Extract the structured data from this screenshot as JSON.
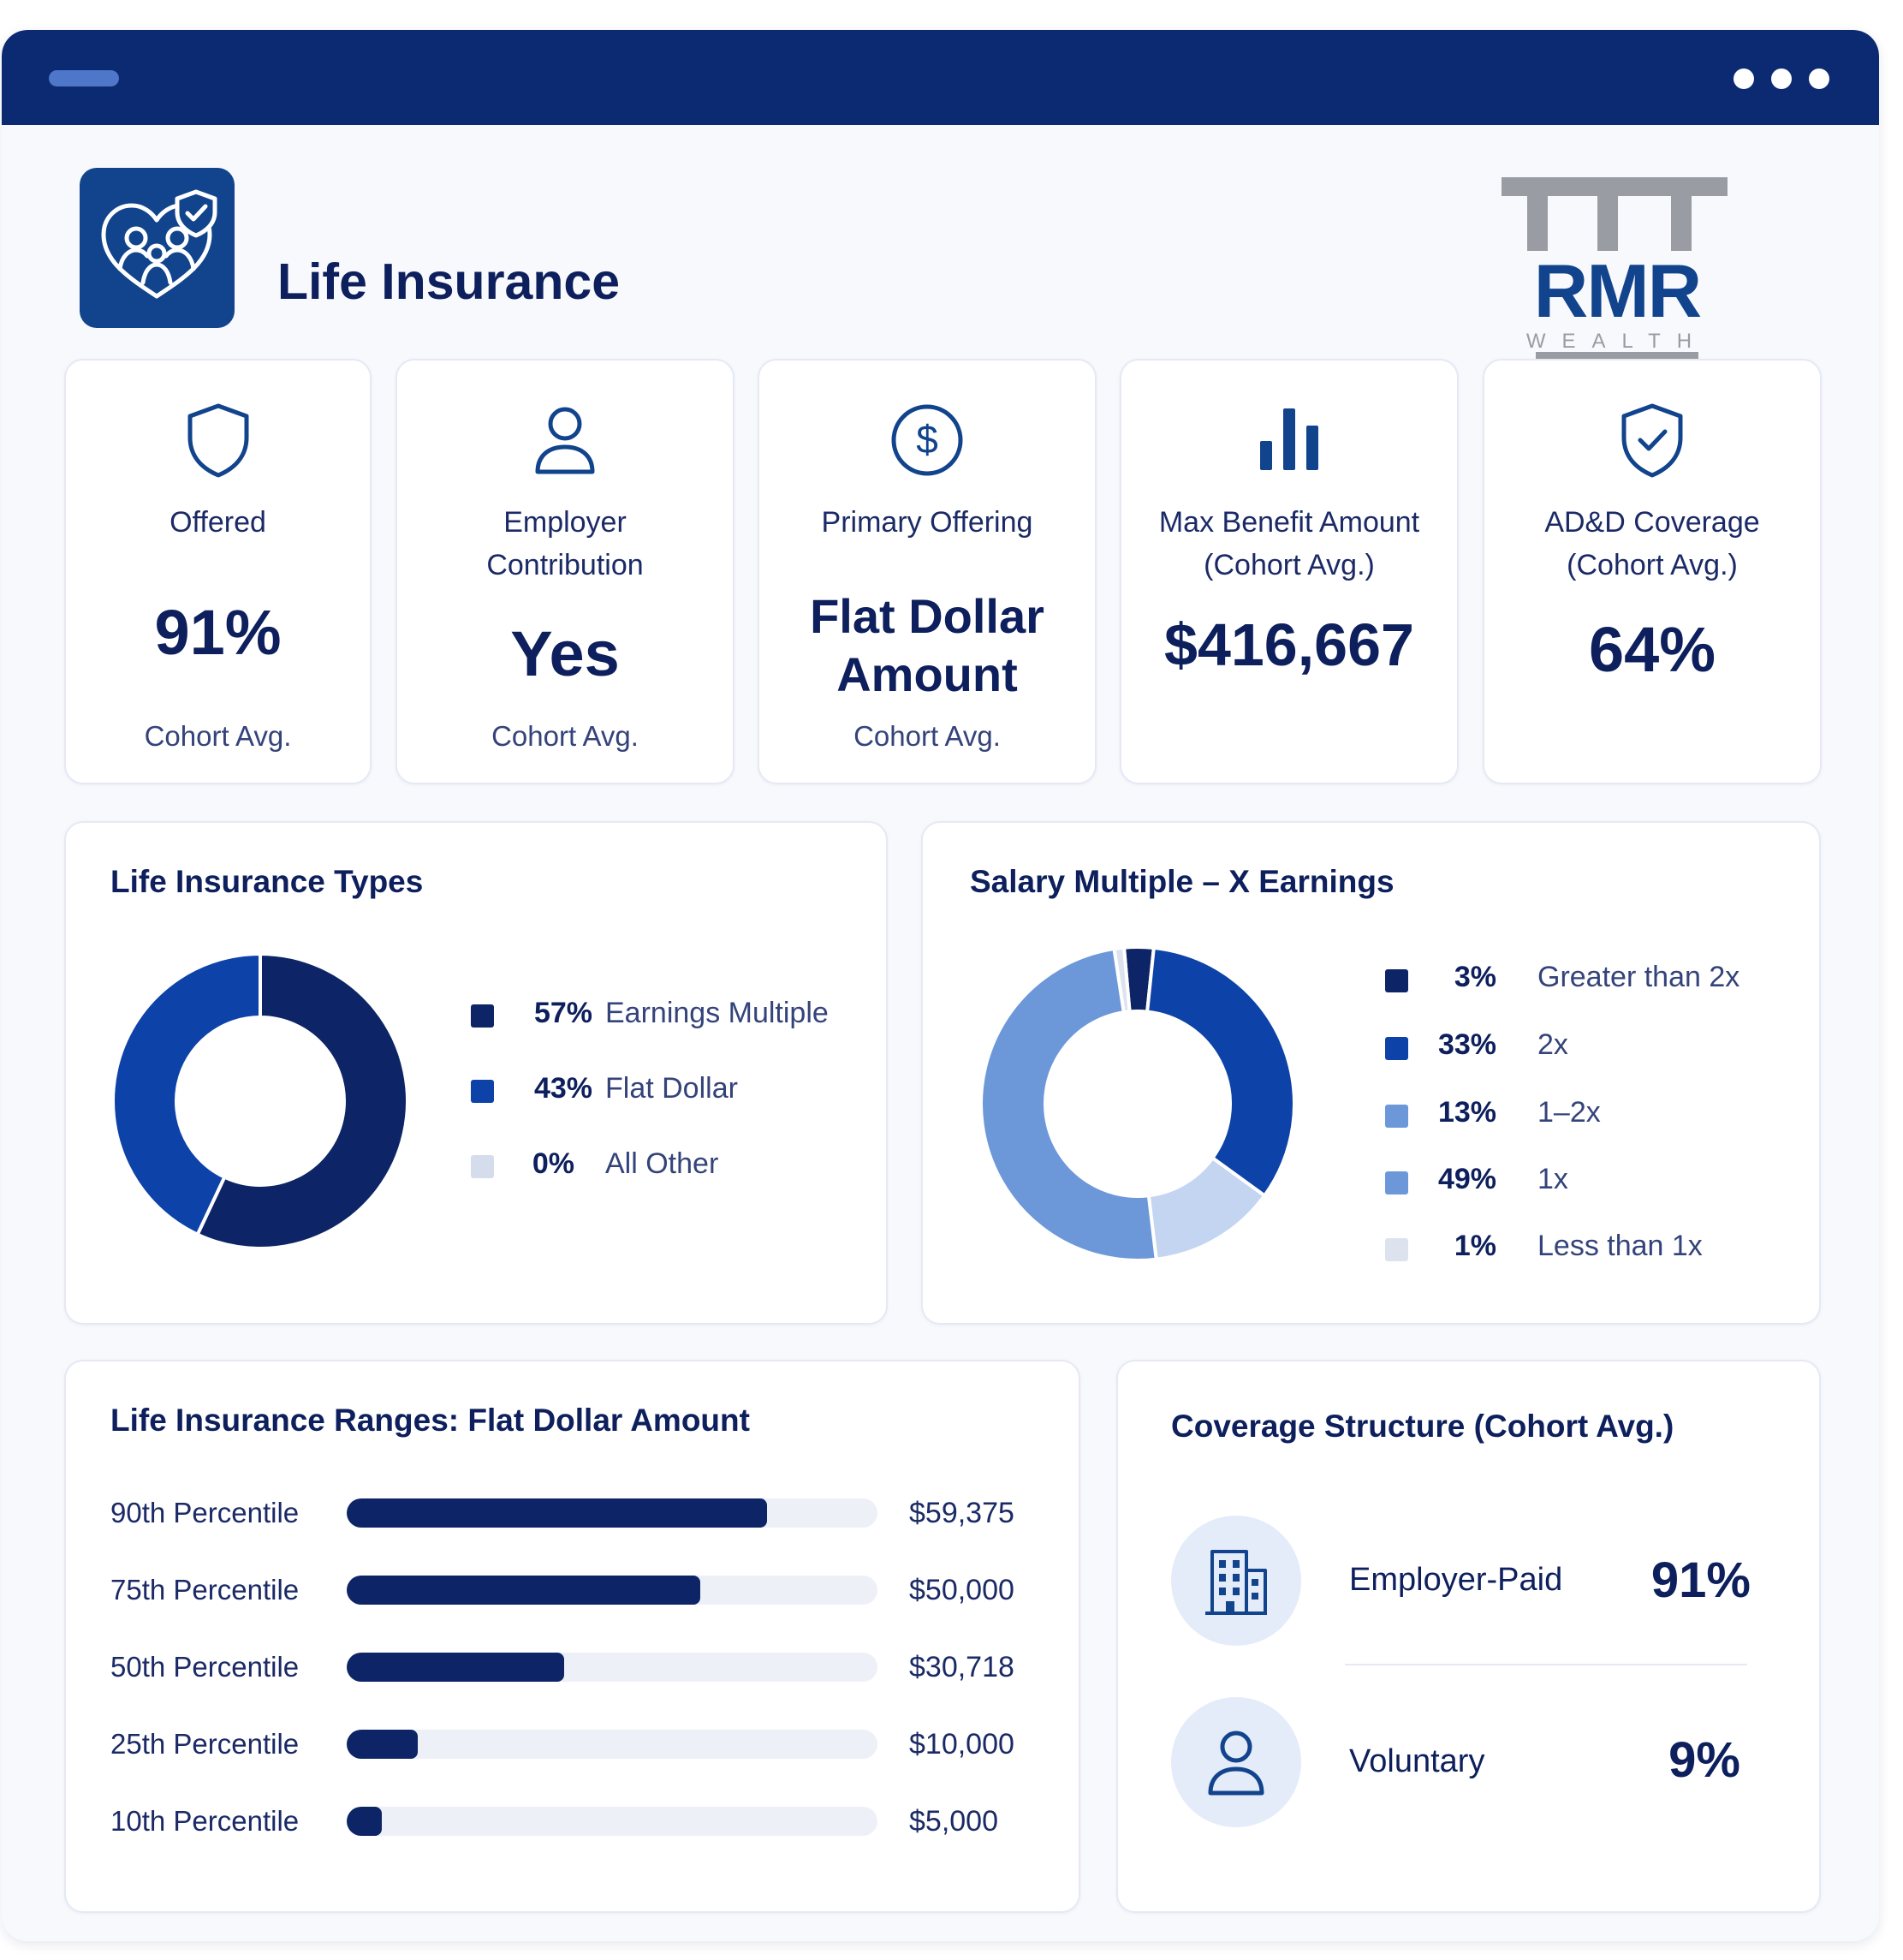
{
  "header": {
    "title": "Life Insurance"
  },
  "logo": {
    "text": "RMR",
    "subtext": "WEALTH"
  },
  "colors": {
    "navy": "#0d2466",
    "brand": "#0b2a72",
    "blue": "#0d42a8",
    "mid_blue": "#6c98da",
    "light_blue": "#c4d5f2",
    "gray_blue": "#d5dceb"
  },
  "stats": [
    {
      "icon": "shield-icon",
      "label": "Offered",
      "value": "91%",
      "sub": "Cohort Avg."
    },
    {
      "icon": "person-icon",
      "label": "Employer Contribution",
      "value": "Yes",
      "sub": "Cohort Avg."
    },
    {
      "icon": "dollar-circle-icon",
      "label": "Primary Offering",
      "value": "Flat Dollar Amount",
      "sub": "Cohort Avg."
    },
    {
      "icon": "bar-chart-icon",
      "label": "Max Benefit Amount (Cohort Avg.)",
      "value": "$416,667",
      "sub": ""
    },
    {
      "icon": "shield-check-icon",
      "label": "AD&D Coverage (Cohort Avg.)",
      "value": "64%",
      "sub": ""
    }
  ],
  "chart_data": [
    {
      "type": "pie",
      "title": "Life Insurance Types",
      "categories": [
        "Earnings Multiple",
        "Flat Dollar",
        "All Other"
      ],
      "values": [
        57,
        43,
        0
      ],
      "labels": [
        "57%",
        "43%",
        "0%"
      ],
      "colors": [
        "#0d2466",
        "#0d42a8",
        "#d5dceb"
      ],
      "donut": true,
      "legend": "right"
    },
    {
      "type": "pie",
      "title": "Salary Multiple – X Earnings",
      "categories": [
        "Greater than 2x",
        "2x",
        "1–2x",
        "1x",
        "Less than 1x"
      ],
      "values": [
        3,
        33,
        13,
        49,
        1
      ],
      "labels": [
        "3%",
        "33%",
        "13%",
        "49%",
        "1%"
      ],
      "colors": [
        "#0d2466",
        "#0d42a8",
        "#c4d5f2",
        "#6c98da",
        "#dde3ee"
      ],
      "donut": true,
      "legend": "right"
    },
    {
      "type": "bar",
      "orientation": "horizontal",
      "title": "Life Insurance Ranges: Flat Dollar Amount",
      "categories": [
        "90th Percentile",
        "75th Percentile",
        "50th Percentile",
        "25th Percentile",
        "10th Percentile"
      ],
      "values": [
        59375,
        50000,
        30718,
        10000,
        5000
      ],
      "labels": [
        "$59,375",
        "$50,000",
        "$30,718",
        "$10,000",
        "$5,000"
      ],
      "xlim": [
        0,
        75000
      ],
      "grid": false
    }
  ],
  "coverage": {
    "title": "Coverage Structure (Cohort Avg.)",
    "items": [
      {
        "icon": "building-icon",
        "label": "Employer-Paid",
        "value": "91%"
      },
      {
        "icon": "person-icon",
        "label": "Voluntary",
        "value": "9%"
      }
    ]
  }
}
